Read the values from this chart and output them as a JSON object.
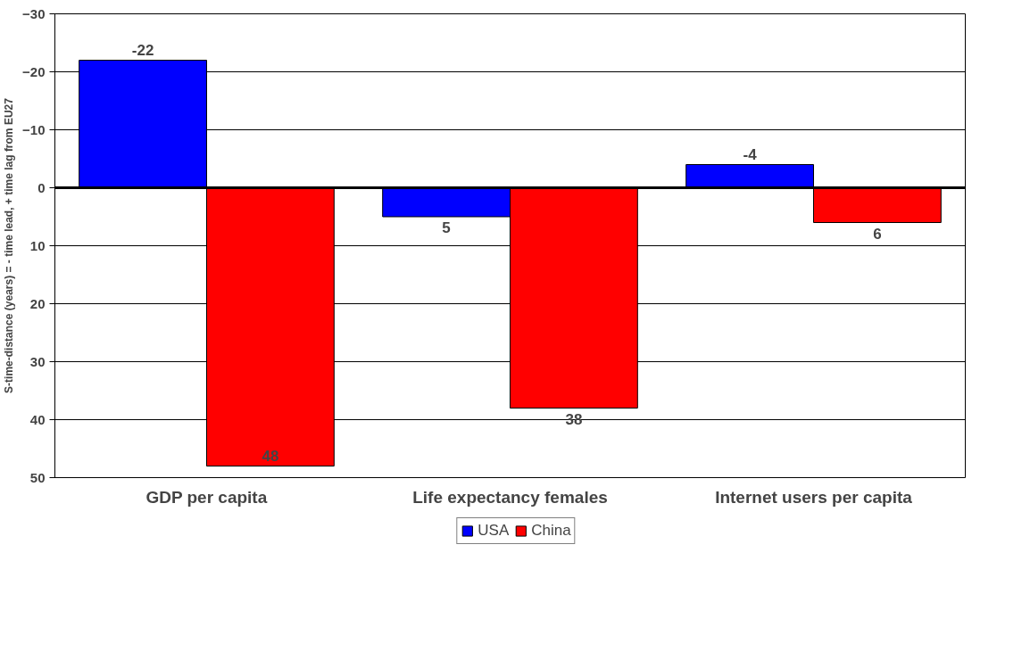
{
  "chart_data": {
    "type": "bar",
    "ylabel": "S-time-distance (years) = - time lead, + time lag from EU27",
    "categories": [
      "GDP per capita",
      "Life expectancy females",
      "Internet users per capita"
    ],
    "series": [
      {
        "name": "USA",
        "color": "#0000ff",
        "values": [
          -22,
          5,
          -4
        ]
      },
      {
        "name": "China",
        "color": "#ff0000",
        "values": [
          48,
          38,
          6
        ]
      }
    ],
    "ylim": [
      50,
      -30
    ],
    "yticks": [
      -30,
      -20,
      -10,
      0,
      10,
      20,
      30,
      40,
      50
    ],
    "grid": "y",
    "legend": "bottom",
    "data_labels": true
  }
}
